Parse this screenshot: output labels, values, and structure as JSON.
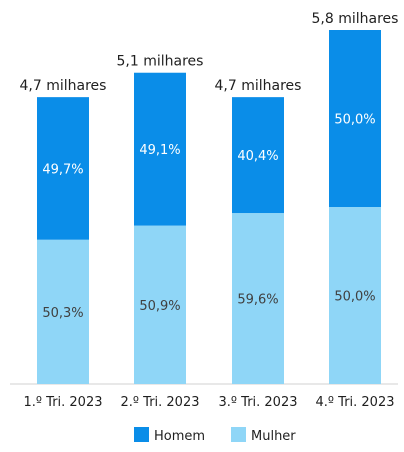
{
  "chart_data": {
    "type": "bar",
    "stacked": true,
    "normalized": true,
    "categories": [
      "1.º Tri. 2023",
      "2.º Tri. 2023",
      "3.º Tri. 2023",
      "4.º Tri. 2023"
    ],
    "totals": [
      4.7,
      5.1,
      4.7,
      5.8
    ],
    "total_labels": [
      "4,7 milhares",
      "5,1 milhares",
      "4,7 milhares",
      "5,8 milhares"
    ],
    "series": [
      {
        "name": "Mulher",
        "values": [
          50.3,
          50.9,
          59.6,
          50.0
        ],
        "labels": [
          "50,3%",
          "50,9%",
          "59,6%",
          "50,0%"
        ],
        "color": "#8fd6f7"
      },
      {
        "name": "Homem",
        "values": [
          49.7,
          49.1,
          40.4,
          50.0
        ],
        "labels": [
          "49,7%",
          "49,1%",
          "40,4%",
          "50,0%"
        ],
        "color": "#0a8de8"
      }
    ],
    "legend": {
      "position": "bottom",
      "entries": [
        "Homem",
        "Mulher"
      ]
    },
    "grid": false
  }
}
